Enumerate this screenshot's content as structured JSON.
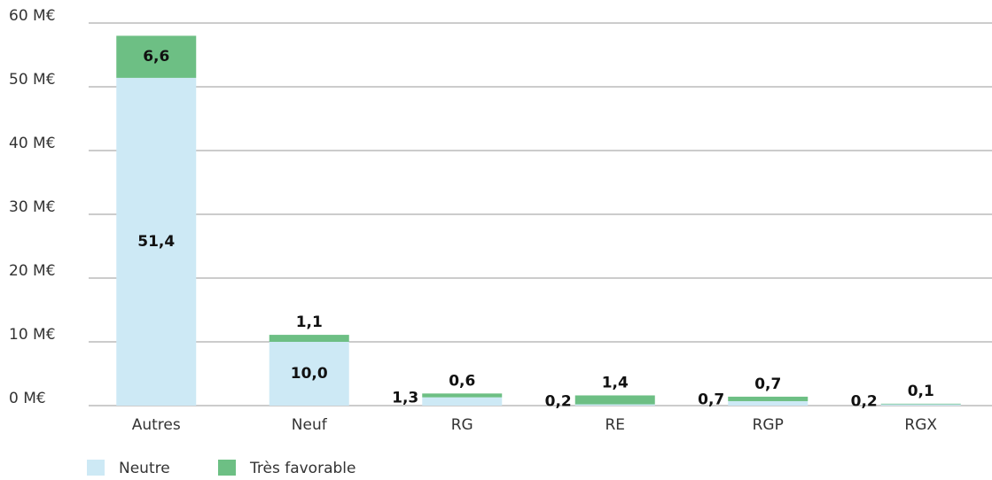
{
  "chart_data": {
    "type": "stacked_bar",
    "categories": [
      "Autres",
      "Neuf",
      "RG",
      "RE",
      "RGP",
      "RGX"
    ],
    "series": [
      {
        "name": "Neutre",
        "color": "#cde9f5",
        "values": [
          51.4,
          10.0,
          1.3,
          0.2,
          0.7,
          0.2
        ],
        "value_labels": [
          "51,4",
          "10,0",
          "1,3",
          "0,2",
          "0,7",
          "0,2"
        ]
      },
      {
        "name": "Très favorable",
        "color": "#6dbf84",
        "values": [
          6.6,
          1.1,
          0.6,
          1.4,
          0.7,
          0.1
        ],
        "value_labels": [
          "6,6",
          "1,1",
          "0,6",
          "1,4",
          "0,7",
          "0,1"
        ]
      }
    ],
    "ylim": [
      0,
      60
    ],
    "yticks": [
      {
        "value": 0,
        "label": "0 M€"
      },
      {
        "value": 10,
        "label": "10 M€"
      },
      {
        "value": 20,
        "label": "20 M€"
      },
      {
        "value": 30,
        "label": "30 M€"
      },
      {
        "value": 40,
        "label": "40 M€"
      },
      {
        "value": 50,
        "label": "50 M€"
      },
      {
        "value": 60,
        "label": "60 M€"
      }
    ],
    "grid": true,
    "legend": "bottom-left"
  }
}
